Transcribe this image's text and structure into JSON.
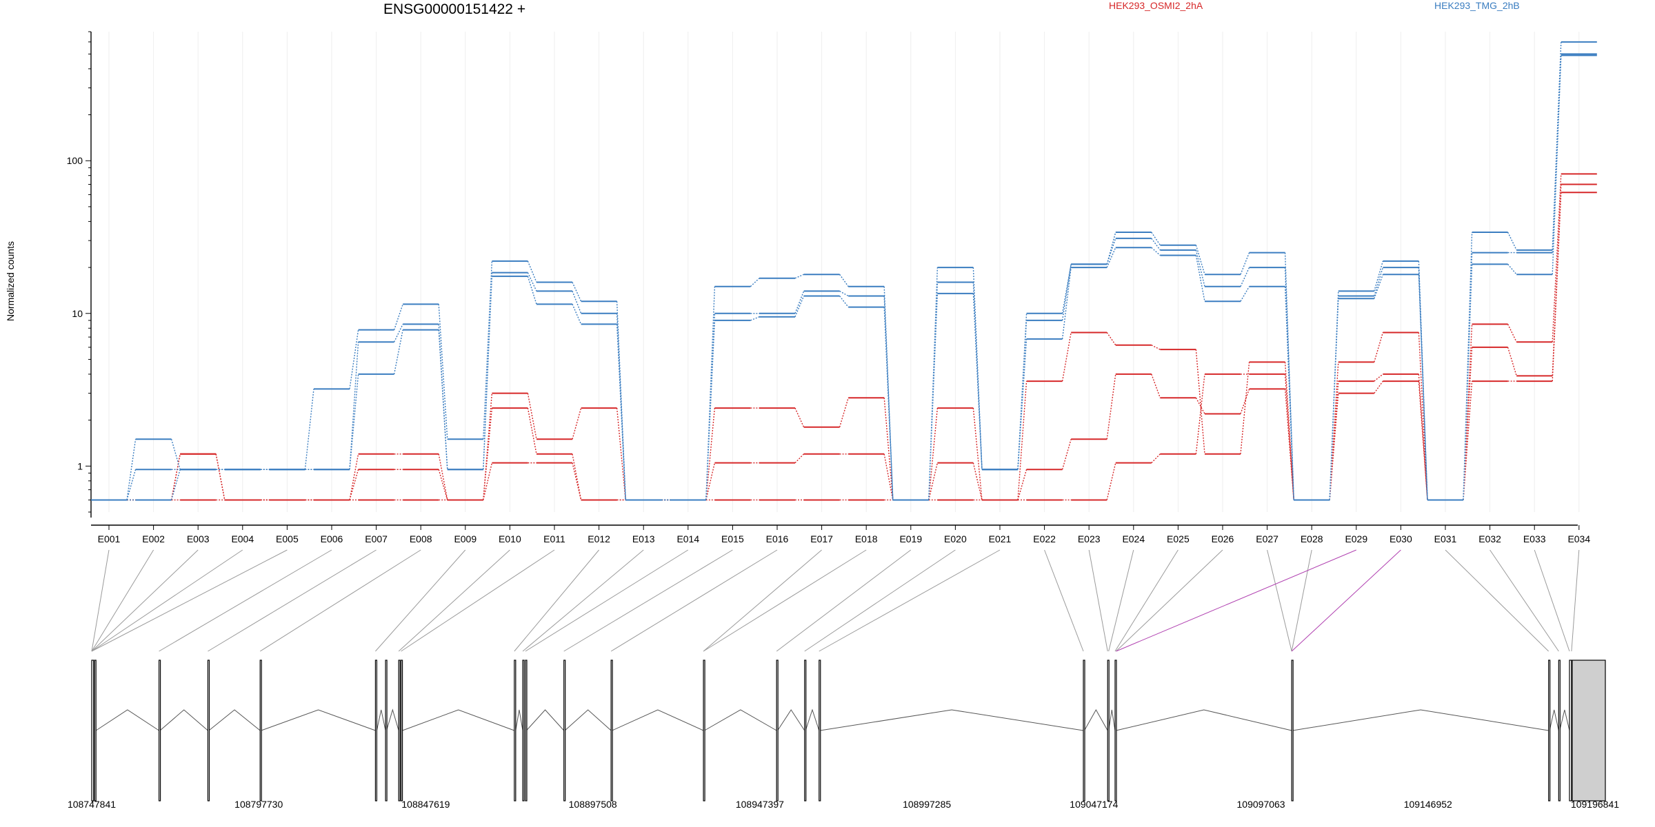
{
  "header": {
    "gene_title": "ENSG00000151422 +",
    "legend": [
      {
        "label": "HEK293_OSMI2_2hA",
        "color": "#d62728"
      },
      {
        "label": "HEK293_TMG_2hB",
        "color": "#3a7dc0"
      }
    ],
    "ylabel": "Normalized counts"
  },
  "chart_data": {
    "type": "line",
    "scale": "log",
    "ylim": [
      0.5,
      700
    ],
    "yticks": [
      {
        "value": 1,
        "label": "1"
      },
      {
        "value": 10,
        "label": "10"
      },
      {
        "value": 100,
        "label": "100"
      }
    ],
    "categories": [
      "E001",
      "E002",
      "E003",
      "E004",
      "E005",
      "E006",
      "E007",
      "E008",
      "E009",
      "E010",
      "E011",
      "E012",
      "E013",
      "E014",
      "E015",
      "E016",
      "E017",
      "E018",
      "E019",
      "E020",
      "E021",
      "E022",
      "E023",
      "E024",
      "E025",
      "E026",
      "E027",
      "E028",
      "E029",
      "E030",
      "E031",
      "E032",
      "E033",
      "E034"
    ],
    "grid": "vertical",
    "series": [
      {
        "name": "HEK293_OSMI2_2hA",
        "color": "#d62728",
        "values": [
          0.6,
          0.6,
          1.2,
          0.6,
          0.6,
          0.6,
          1.2,
          1.2,
          0.6,
          3.0,
          1.5,
          2.4,
          0.6,
          0.6,
          2.4,
          2.4,
          1.8,
          2.8,
          0.6,
          2.4,
          0.6,
          3.6,
          7.5,
          6.2,
          5.8,
          1.2,
          4.8,
          0.6,
          4.8,
          7.5,
          0.6,
          8.5,
          6.5,
          82
        ]
      },
      {
        "name": "",
        "color": "#d62728",
        "values": [
          0.6,
          0.6,
          1.2,
          0.6,
          0.6,
          0.6,
          0.95,
          0.95,
          0.6,
          2.4,
          1.2,
          0.6,
          0.6,
          0.6,
          1.05,
          1.05,
          1.2,
          1.2,
          0.6,
          1.05,
          0.6,
          0.95,
          1.5,
          4.0,
          2.8,
          2.2,
          3.2,
          0.6,
          3.6,
          4.0,
          0.6,
          6.0,
          3.9,
          70
        ]
      },
      {
        "name": "",
        "color": "#d62728",
        "values": [
          0.6,
          0.6,
          0.6,
          0.6,
          0.6,
          0.6,
          0.6,
          0.6,
          0.6,
          1.05,
          1.05,
          0.6,
          0.6,
          0.6,
          0.6,
          0.6,
          0.6,
          0.6,
          0.6,
          0.6,
          0.6,
          0.6,
          0.6,
          1.05,
          1.2,
          4.0,
          4.0,
          0.6,
          3.0,
          3.6,
          0.6,
          3.6,
          3.6,
          62
        ]
      },
      {
        "name": "HEK293_TMG_2hB",
        "color": "#3a7dc0",
        "values": [
          0.6,
          1.5,
          0.95,
          0.95,
          0.95,
          3.2,
          7.8,
          11.5,
          1.5,
          22,
          16,
          12,
          0.6,
          0.6,
          15,
          17,
          18,
          15,
          0.6,
          20,
          0.95,
          10,
          21,
          34,
          28,
          18,
          25,
          0.6,
          14,
          22,
          0.6,
          34,
          26,
          600
        ]
      },
      {
        "name": "",
        "color": "#3a7dc0",
        "values": [
          0.6,
          0.95,
          0.95,
          0.95,
          0.95,
          0.95,
          6.5,
          8.5,
          0.95,
          18.5,
          14,
          10,
          0.6,
          0.6,
          10,
          10,
          14,
          13,
          0.6,
          16,
          0.95,
          9,
          21,
          31,
          26,
          15,
          20,
          0.6,
          13,
          20,
          0.6,
          25,
          25,
          500
        ]
      },
      {
        "name": "",
        "color": "#3a7dc0",
        "values": [
          0.6,
          0.6,
          0.95,
          0.95,
          0.95,
          0.95,
          4.0,
          7.8,
          0.95,
          17.5,
          11.5,
          8.5,
          0.6,
          0.6,
          9,
          9.5,
          13,
          11,
          0.6,
          13.5,
          0.95,
          6.8,
          20,
          27,
          24,
          12,
          15,
          0.6,
          12.5,
          18,
          0.6,
          21,
          18,
          490
        ]
      }
    ]
  },
  "gene_model": {
    "coordinates": [
      "108747841",
      "108797730",
      "108847619",
      "108897508",
      "108947397",
      "108997285",
      "109047174",
      "109097063",
      "109146952",
      "109196841"
    ],
    "genome_range": [
      108747841,
      109196841
    ],
    "exons": [
      {
        "start": 108747841,
        "end": 108748400
      },
      {
        "start": 108748700,
        "end": 108749100
      },
      {
        "start": 108767800,
        "end": 108768100
      },
      {
        "start": 108782300,
        "end": 108782600
      },
      {
        "start": 108797800,
        "end": 108798100
      },
      {
        "start": 108832000,
        "end": 108832400
      },
      {
        "start": 108835000,
        "end": 108835300
      },
      {
        "start": 108838900,
        "end": 108839300
      },
      {
        "start": 108839600,
        "end": 108840000
      },
      {
        "start": 108873200,
        "end": 108873600
      },
      {
        "start": 108875700,
        "end": 108876100
      },
      {
        "start": 108876500,
        "end": 108876800
      },
      {
        "start": 108887900,
        "end": 108888200
      },
      {
        "start": 108901900,
        "end": 108902200
      },
      {
        "start": 108929300,
        "end": 108929600
      },
      {
        "start": 108951000,
        "end": 108951300
      },
      {
        "start": 108959300,
        "end": 108959600
      },
      {
        "start": 108963600,
        "end": 108963900
      },
      {
        "start": 109042000,
        "end": 109042300
      },
      {
        "start": 109049200,
        "end": 109049500
      },
      {
        "start": 109051400,
        "end": 109051700
      },
      {
        "start": 109103800,
        "end": 109104100
      },
      {
        "start": 109180000,
        "end": 109180300
      },
      {
        "start": 109183000,
        "end": 109183300
      },
      {
        "start": 109186200,
        "end": 109186800
      },
      {
        "start": 109187000,
        "end": 109196841,
        "utr": true
      }
    ],
    "highlight_color": "#b040b0",
    "highlighted_connectors": [
      "E029",
      "E030"
    ],
    "exon_anchor_positions": [
      108747841,
      108747841,
      108747841,
      108747841,
      108747841,
      108767800,
      108782300,
      108797800,
      108832000,
      108838900,
      108839600,
      108873200,
      108875700,
      108876500,
      108887900,
      108901900,
      108929300,
      108929300,
      108951000,
      108959300,
      108963600,
      109042000,
      109049200,
      109049500,
      109051400,
      109051700,
      109103800,
      109103800,
      109051700,
      109103800,
      109180000,
      109183000,
      109186200,
      109186800
    ]
  }
}
